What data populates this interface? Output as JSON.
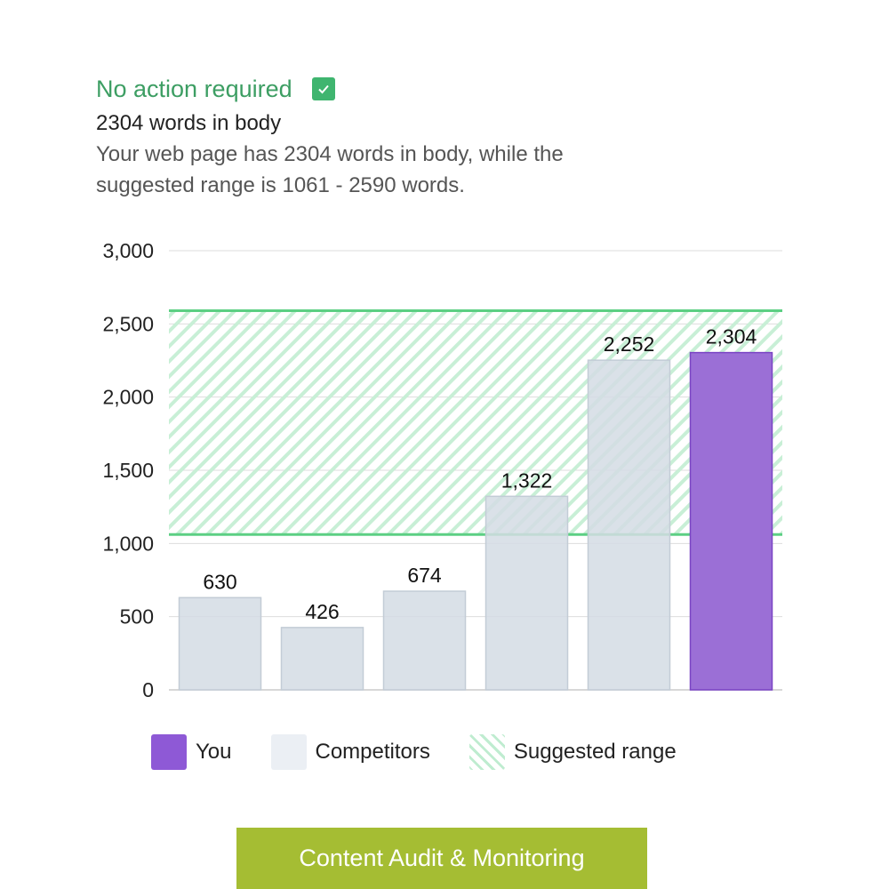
{
  "header": {
    "status": "No action required",
    "word_count": "2304 words in body",
    "description": "Your web page has 2304 words in body, while the suggested range is 1061 - 2590 words."
  },
  "colors": {
    "status_green": "#3d9e63",
    "range_line": "#5ccf83",
    "range_hatch": "#c8efd6",
    "competitor_bar": "#d4dce4",
    "you_bar": "#9b6fd6",
    "cta_background": "#a5bd33"
  },
  "chart_data": {
    "type": "bar",
    "categories": [
      "",
      "",
      "",
      "",
      "",
      ""
    ],
    "series": [
      {
        "name": "Competitors",
        "values": [
          630,
          426,
          674,
          1322,
          2252,
          null
        ]
      },
      {
        "name": "You",
        "values": [
          null,
          null,
          null,
          null,
          null,
          2304
        ]
      }
    ],
    "data_labels": [
      "630",
      "426",
      "674",
      "1,322",
      "2,252",
      "2,304"
    ],
    "suggested_range": [
      1061,
      2590
    ],
    "ylim": [
      0,
      3000
    ],
    "yticks": [
      0,
      500,
      1000,
      1500,
      2000,
      2500,
      3000
    ],
    "ytick_labels": [
      "0",
      "500",
      "1,000",
      "1,500",
      "2,000",
      "2,500",
      "3,000"
    ],
    "grid": true,
    "legend": {
      "position": "bottom",
      "items": [
        "You",
        "Competitors",
        "Suggested range"
      ]
    }
  },
  "cta": {
    "label": "Content Audit & Monitoring"
  }
}
